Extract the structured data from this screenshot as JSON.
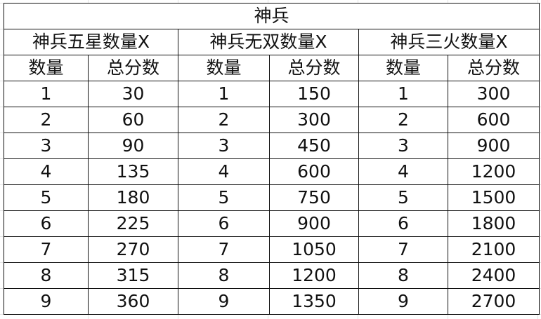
{
  "title": "神兵",
  "groups": [
    "神兵五星数量X",
    "神兵无双数量X",
    "神兵三火数量X"
  ],
  "subheaders": [
    "数量",
    "总分数",
    "数量",
    "总分数",
    "数量",
    "总分数"
  ],
  "rows": [
    [
      "1",
      "30",
      "1",
      "150",
      "1",
      "300"
    ],
    [
      "2",
      "60",
      "2",
      "300",
      "2",
      "600"
    ],
    [
      "3",
      "90",
      "3",
      "450",
      "3",
      "900"
    ],
    [
      "4",
      "135",
      "4",
      "600",
      "4",
      "1200"
    ],
    [
      "5",
      "180",
      "5",
      "750",
      "5",
      "1500"
    ],
    [
      "6",
      "225",
      "6",
      "900",
      "6",
      "1800"
    ],
    [
      "7",
      "270",
      "7",
      "1050",
      "7",
      "2100"
    ],
    [
      "8",
      "315",
      "8",
      "1200",
      "8",
      "2400"
    ],
    [
      "9",
      "360",
      "9",
      "1350",
      "9",
      "2700"
    ]
  ]
}
